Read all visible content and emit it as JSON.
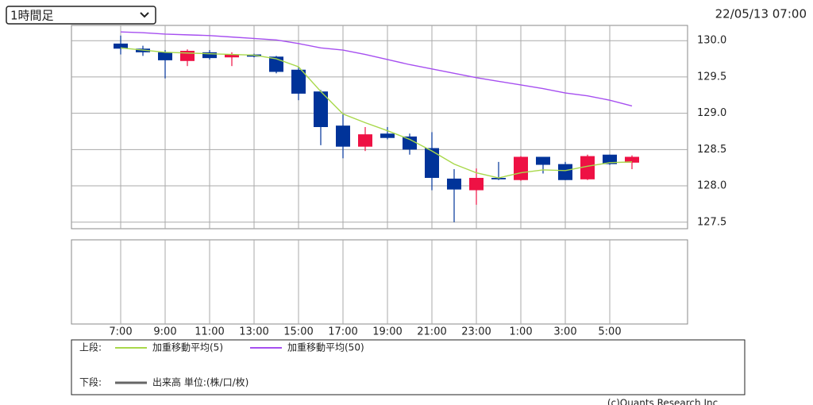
{
  "header": {
    "timeframe": "1時間足",
    "timestamp": "22/05/13 07:00"
  },
  "chart_data": {
    "type": "candlestick",
    "categories": [
      "7:00",
      null,
      "9:00",
      null,
      "11:00",
      null,
      "13:00",
      null,
      "15:00",
      null,
      "17:00",
      null,
      "19:00",
      null,
      "21:00",
      null,
      "23:00",
      null,
      "1:00",
      null,
      "3:00",
      null,
      "5:00",
      null
    ],
    "up_color": "#ee1144",
    "down_color": "#003399",
    "open": [
      129.96,
      129.89,
      129.84,
      129.72,
      129.84,
      129.77,
      129.81,
      129.78,
      129.6,
      129.3,
      128.83,
      128.54,
      128.72,
      128.68,
      128.52,
      128.1,
      127.94,
      128.11,
      128.08,
      128.4,
      128.3,
      128.09,
      128.43,
      128.32
    ],
    "high": [
      130.07,
      129.93,
      129.87,
      129.88,
      129.87,
      129.84,
      129.82,
      129.79,
      129.64,
      129.32,
      129.0,
      128.81,
      128.81,
      128.72,
      128.74,
      128.23,
      128.24,
      128.33,
      128.41,
      128.4,
      128.33,
      128.43,
      128.43,
      128.42
    ],
    "low": [
      129.81,
      129.79,
      129.48,
      129.65,
      129.74,
      129.65,
      129.77,
      129.55,
      129.18,
      128.56,
      128.38,
      128.48,
      128.64,
      128.43,
      127.94,
      127.5,
      127.74,
      128.08,
      128.07,
      128.17,
      128.08,
      128.08,
      128.29,
      128.23
    ],
    "close": [
      129.89,
      129.84,
      129.73,
      129.86,
      129.76,
      129.81,
      129.78,
      129.57,
      129.27,
      128.81,
      128.54,
      128.71,
      128.66,
      128.5,
      128.11,
      127.95,
      128.11,
      128.09,
      128.4,
      128.29,
      128.08,
      128.41,
      128.3,
      128.4
    ],
    "series": [
      {
        "name": "加重移動平均(5)",
        "color": "#a8d84a",
        "values": [
          129.9,
          129.87,
          129.84,
          129.83,
          129.82,
          129.81,
          129.8,
          129.75,
          129.64,
          129.3,
          128.99,
          128.87,
          128.76,
          128.64,
          128.48,
          128.3,
          128.18,
          128.11,
          128.18,
          128.22,
          128.21,
          128.27,
          128.32,
          128.33
        ]
      },
      {
        "name": "加重移動平均(50)",
        "color": "#a64ff0",
        "values": [
          130.12,
          130.11,
          130.09,
          130.08,
          130.07,
          130.05,
          130.03,
          130.01,
          129.96,
          129.9,
          129.87,
          129.81,
          129.74,
          129.67,
          129.61,
          129.55,
          129.49,
          129.44,
          129.39,
          129.34,
          129.28,
          129.24,
          129.18,
          129.1
        ]
      }
    ],
    "ylim": [
      127.41,
      130.21
    ],
    "yticks": [
      {
        "value": 127.5,
        "label": "127.5"
      },
      {
        "value": 128,
        "label": "128.0"
      },
      {
        "value": 128.5,
        "label": "128.5"
      },
      {
        "value": 129,
        "label": "129.0"
      },
      {
        "value": 129.5,
        "label": "129.5"
      },
      {
        "value": 130,
        "label": "130.0"
      }
    ],
    "grid": true,
    "legend": {
      "upper_label": "上段:",
      "lower_label": "下段:",
      "volume_name": "出来高 単位:(株/口/枚)",
      "volume_color": "#666666"
    }
  },
  "footer": "(c)Quants Research Inc."
}
